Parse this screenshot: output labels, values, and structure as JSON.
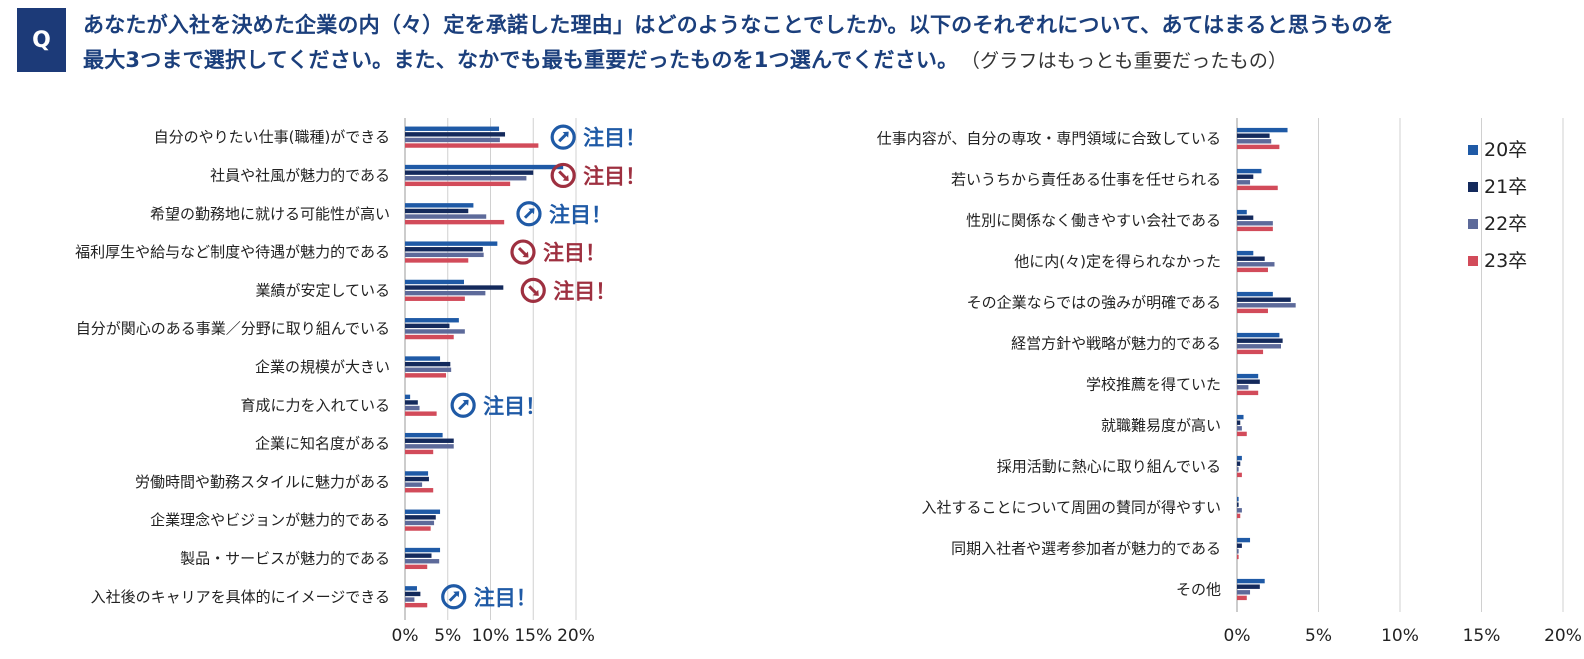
{
  "question": {
    "badge": "Q",
    "line1": "あなたが入社を決めた企業の内（々）定を承諾した理由」はどのようなことでしたか。以下のそれぞれについて、あてはまると思うものを",
    "line2": "最大3つまで選択してください。また、なかでも最も重要だったものを1つ選んでください。",
    "note": "（グラフはもっとも重要だったもの）"
  },
  "colors": {
    "20卒": "#1f5aa6",
    "21卒": "#142a5c",
    "22卒": "#5d6a9a",
    "23卒": "#d24b5a",
    "highlight_blue": "#1f5aa6",
    "highlight_red": "#9e3040"
  },
  "legend": [
    "20卒",
    "21卒",
    "22卒",
    "23卒"
  ],
  "chart_data": [
    {
      "type": "bar",
      "orientation": "horizontal",
      "xlim": [
        0,
        20
      ],
      "ticks": [
        "0%",
        "5%",
        "10%",
        "15%",
        "20%"
      ],
      "categories": [
        "自分のやりたい仕事(職種)ができる",
        "社員や社風が魅力的である",
        "希望の勤務地に就ける可能性が高い",
        "福利厚生や給与など制度や待遇が魅力的である",
        "業績が安定している",
        "自分が関心のある事業／分野に取り組んでいる",
        "企業の規模が大きい",
        "育成に力を入れている",
        "企業に知名度がある",
        "労働時間や勤務スタイルに魅力がある",
        "企業理念やビジョンが魅力的である",
        "製品・サービスが魅力的である",
        "入社後のキャリアを具体的にイメージできる"
      ],
      "series": [
        {
          "name": "20卒",
          "values": [
            11.0,
            18.5,
            8.0,
            10.8,
            6.9,
            6.3,
            4.1,
            0.6,
            4.4,
            2.7,
            4.1,
            4.1,
            1.4
          ]
        },
        {
          "name": "21卒",
          "values": [
            11.7,
            15.0,
            7.4,
            9.1,
            11.5,
            5.2,
            5.3,
            1.5,
            5.7,
            2.8,
            3.6,
            3.1,
            1.8
          ]
        },
        {
          "name": "22卒",
          "values": [
            11.1,
            14.2,
            9.5,
            9.2,
            9.4,
            7.0,
            5.4,
            1.7,
            5.7,
            2.0,
            3.4,
            4.0,
            1.1
          ]
        },
        {
          "name": "23卒",
          "values": [
            15.6,
            12.3,
            11.6,
            7.4,
            7.0,
            5.7,
            4.8,
            3.7,
            3.3,
            3.3,
            3.0,
            2.6,
            2.6
          ]
        }
      ],
      "annotations": [
        {
          "category_index": 0,
          "label": "注目！",
          "icon": "up-arrow-icon",
          "color": "blue",
          "pos": 18.5
        },
        {
          "category_index": 1,
          "label": "注目！",
          "icon": "down-arrow-icon",
          "color": "red",
          "pos": 18.5
        },
        {
          "category_index": 2,
          "label": "注目！",
          "icon": "up-arrow-icon",
          "color": "blue",
          "pos": 14.5
        },
        {
          "category_index": 3,
          "label": "注目！",
          "icon": "down-arrow-icon",
          "color": "red",
          "pos": 13.8
        },
        {
          "category_index": 4,
          "label": "注目！",
          "icon": "down-arrow-icon",
          "color": "red",
          "pos": 15.0
        },
        {
          "category_index": 7,
          "label": "注目！",
          "icon": "up-arrow-icon",
          "color": "blue",
          "pos": 6.8
        },
        {
          "category_index": 12,
          "label": "注目！",
          "icon": "up-arrow-icon",
          "color": "blue",
          "pos": 5.7
        }
      ]
    },
    {
      "type": "bar",
      "orientation": "horizontal",
      "xlim": [
        0,
        20
      ],
      "ticks": [
        "0%",
        "5%",
        "10%",
        "15%",
        "20%"
      ],
      "categories": [
        "仕事内容が、自分の専攻・専門領域に合致している",
        "若いうちから責任ある仕事を任せられる",
        "性別に関係なく働きやすい会社である",
        "他に内(々)定を得られなかった",
        "その企業ならではの強みが明確である",
        "経営方針や戦略が魅力的である",
        "学校推薦を得ていた",
        "就職難易度が高い",
        "採用活動に熱心に取り組んでいる",
        "入社することについて周囲の賛同が得やすい",
        "同期入社者や選考参加者が魅力的である",
        "その他"
      ],
      "series": [
        {
          "name": "20卒",
          "values": [
            3.1,
            1.5,
            0.6,
            1.0,
            2.2,
            2.6,
            1.3,
            0.4,
            0.3,
            0.1,
            0.8,
            1.7
          ]
        },
        {
          "name": "21卒",
          "values": [
            2.0,
            1.0,
            1.0,
            1.7,
            3.3,
            2.8,
            1.4,
            0.2,
            0.2,
            0.1,
            0.3,
            1.4
          ]
        },
        {
          "name": "22卒",
          "values": [
            2.1,
            0.8,
            2.2,
            2.3,
            3.6,
            2.7,
            0.7,
            0.3,
            0.1,
            0.3,
            0.1,
            0.8
          ]
        },
        {
          "name": "23卒",
          "values": [
            2.6,
            2.5,
            2.2,
            1.9,
            1.9,
            1.6,
            1.3,
            0.6,
            0.3,
            0.2,
            0.1,
            0.6
          ]
        }
      ]
    }
  ]
}
